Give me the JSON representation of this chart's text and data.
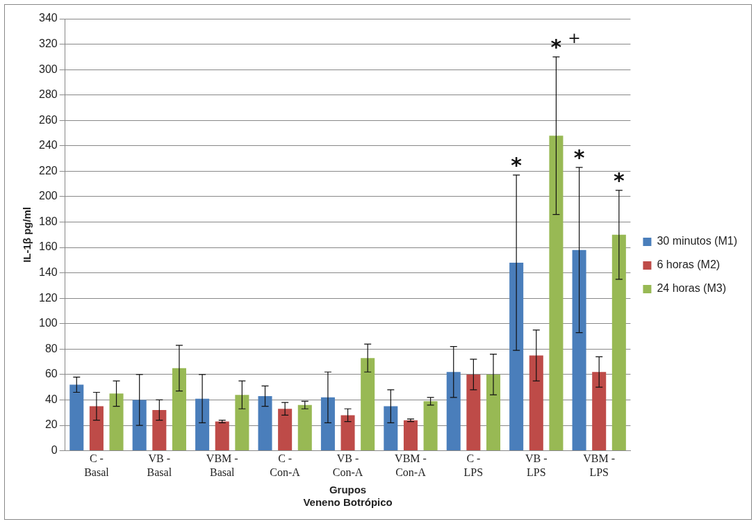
{
  "chart_data": {
    "type": "bar",
    "xlabel": "Grupos\nVeneno Botrópico",
    "ylabel": "IL-1β pg/ml",
    "categories": [
      "C - Basal",
      "VB - Basal",
      "VBM - Basal",
      "C - Con-A",
      "VB - Con-A",
      "VBM - Con-A",
      "C - LPS",
      "VB - LPS",
      "VBM - LPS"
    ],
    "series": [
      {
        "name": "30 minutos (M1)",
        "color": "#4a7ebb",
        "values": [
          52,
          40,
          41,
          43,
          42,
          35,
          62,
          148,
          158
        ],
        "errors": [
          6,
          20,
          19,
          8,
          20,
          13,
          20,
          69,
          65
        ]
      },
      {
        "name": "6 horas (M2)",
        "color": "#be4b48",
        "values": [
          35,
          32,
          23,
          33,
          28,
          24,
          60,
          75,
          62
        ],
        "errors": [
          11,
          8,
          1,
          5,
          5,
          1,
          12,
          20,
          12
        ]
      },
      {
        "name": "24 horas (M3)",
        "color": "#98b954",
        "values": [
          45,
          65,
          44,
          36,
          73,
          39,
          60,
          248,
          170
        ],
        "errors": [
          10,
          18,
          11,
          3,
          11,
          3,
          16,
          62,
          35
        ]
      }
    ],
    "ylim": [
      0,
      340
    ],
    "yticks": [
      0,
      20,
      40,
      60,
      80,
      100,
      120,
      140,
      160,
      180,
      200,
      220,
      240,
      260,
      280,
      300,
      320,
      340
    ],
    "grid": "y",
    "legend": "right",
    "annotations": [
      "*",
      "*",
      "+",
      "*",
      "*"
    ]
  }
}
